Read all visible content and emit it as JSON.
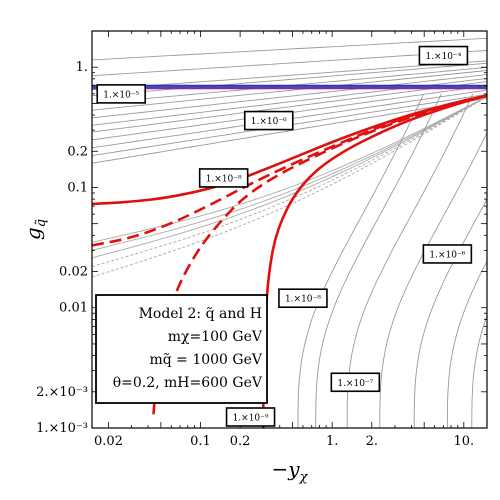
{
  "chart_data": {
    "type": "line",
    "xlabel": "−y",
    "xlabel_sub": "χ",
    "ylabel": "g",
    "ylabel_sub": "q̃",
    "x_scale": "log",
    "y_scale": "log",
    "xlim": [
      0.015,
      15
    ],
    "ylim": [
      0.001,
      2
    ],
    "x_ticks": [
      {
        "value": 0.02,
        "label": "0.02"
      },
      {
        "value": 0.1,
        "label": "0.1"
      },
      {
        "value": 0.2,
        "label": "0.2"
      },
      {
        "value": 1,
        "label": "1."
      },
      {
        "value": 2,
        "label": "2."
      },
      {
        "value": 10,
        "label": "10."
      }
    ],
    "y_ticks": [
      {
        "value": 1,
        "label": "1."
      },
      {
        "value": 0.2,
        "label": "0.2"
      },
      {
        "value": 0.1,
        "label": "0.1"
      },
      {
        "value": 0.02,
        "label": "0.02"
      },
      {
        "value": 0.01,
        "label": "0.01"
      },
      {
        "value": 0.002,
        "label": "2.×10⁻³"
      },
      {
        "value": 0.001,
        "label": "1.×10⁻³"
      }
    ],
    "legend_lines": [
      "Model 2: q̃ and H",
      "mχ=100 GeV",
      "mq̃ = 1000 GeV",
      "θ=0.2, mH=600 GeV"
    ],
    "contour_labels": [
      {
        "text": "1.×10⁻⁴",
        "x": 7.0,
        "y": 1.25
      },
      {
        "text": "1.×10⁻⁵",
        "x": 0.025,
        "y": 0.6
      },
      {
        "text": "1.×10⁻⁶",
        "x": 0.33,
        "y": 0.36
      },
      {
        "text": "1.×10⁻⁸",
        "x": 0.15,
        "y": 0.12
      },
      {
        "text": "1.×10⁻⁶",
        "x": 7.5,
        "y": 0.028
      },
      {
        "text": "1.×10⁻⁸",
        "x": 0.6,
        "y": 0.012
      },
      {
        "text": "1.×10⁻⁷",
        "x": 1.5,
        "y": 0.0024
      },
      {
        "text": "1.×10⁻⁹",
        "x": 0.24,
        "y": 0.00115
      }
    ],
    "horizontal_lines": [
      {
        "y": 0.7,
        "color": "#2233cc",
        "width": 2.2
      },
      {
        "y": 0.67,
        "color": "#7a2fa0",
        "width": 2.2
      }
    ],
    "gray_contours_y": [
      1.15,
      0.85,
      0.65,
      0.58,
      0.5,
      0.44,
      0.38,
      0.33,
      0.29,
      0.25,
      0.215,
      0.185,
      0.16
    ],
    "gray_vertical_asymptotes": [
      0.55,
      0.75,
      1.3,
      2.3,
      4.2,
      7.5,
      11.5
    ],
    "red_curves": [
      {
        "style": "solid",
        "points": [
          [
            0.015,
            0.073
          ],
          [
            0.03,
            0.076
          ],
          [
            0.06,
            0.083
          ],
          [
            0.15,
            0.104
          ],
          [
            0.4,
            0.158
          ],
          [
            1,
            0.24
          ],
          [
            3,
            0.37
          ],
          [
            8,
            0.5
          ],
          [
            15,
            0.58
          ]
        ]
      },
      {
        "style": "dash",
        "points": [
          [
            0.015,
            0.033
          ],
          [
            0.03,
            0.038
          ],
          [
            0.06,
            0.05
          ],
          [
            0.12,
            0.072
          ],
          [
            0.3,
            0.122
          ],
          [
            1,
            0.22
          ],
          [
            3,
            0.36
          ],
          [
            8,
            0.5
          ],
          [
            15,
            0.58
          ]
        ]
      },
      {
        "style": "dash",
        "points": [
          [
            0.044,
            0.0013
          ],
          [
            0.046,
            0.0025
          ],
          [
            0.05,
            0.005
          ],
          [
            0.06,
            0.011
          ],
          [
            0.08,
            0.022
          ],
          [
            0.12,
            0.043
          ],
          [
            0.25,
            0.1
          ],
          [
            1,
            0.215
          ],
          [
            3,
            0.35
          ],
          [
            8,
            0.49
          ],
          [
            15,
            0.58
          ]
        ]
      },
      {
        "style": "solid",
        "points": [
          [
            0.3,
            0.001
          ],
          [
            0.3,
            0.003
          ],
          [
            0.31,
            0.008
          ],
          [
            0.33,
            0.02
          ],
          [
            0.38,
            0.045
          ],
          [
            0.55,
            0.1
          ],
          [
            1,
            0.18
          ],
          [
            3,
            0.33
          ],
          [
            8,
            0.48
          ],
          [
            15,
            0.58
          ]
        ]
      }
    ],
    "red_color": "#e01010"
  }
}
